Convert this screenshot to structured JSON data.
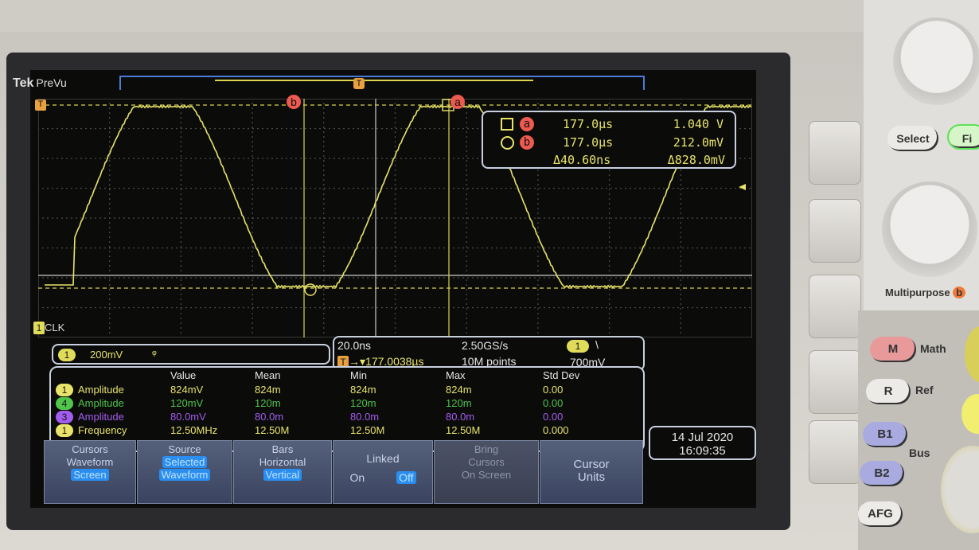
{
  "header": {
    "brand": "Tek",
    "mode": "PreVu"
  },
  "markers": {
    "trigger": "T",
    "cursor_a": "a",
    "cursor_b": "b",
    "channel_label": "CLK",
    "channel_num": "1"
  },
  "cursor_readout": {
    "a": {
      "shape": "square",
      "label": "a",
      "time": "177.0µs",
      "value": "1.040 V"
    },
    "b": {
      "shape": "circle",
      "label": "b",
      "time": "177.0µs",
      "value": "212.0mV"
    },
    "delta": {
      "time": "Δ40.60ns",
      "value": "Δ828.0mV"
    }
  },
  "channel": {
    "num": "1",
    "scale": "200mV",
    "coupling_icon": "bandwidth-icon"
  },
  "timebase": {
    "scale": "20.0ns",
    "trigger_pos": "177.0038µs",
    "sample_rate": "2.50GS/s",
    "record": "10M points",
    "trig_ch": "1",
    "trig_slope": "\\",
    "trig_level": "700mV"
  },
  "measurements": {
    "headers": [
      "Value",
      "Mean",
      "Min",
      "Max",
      "Std Dev"
    ],
    "rows": [
      {
        "ch": "1",
        "name": "Amplitude",
        "color": "#e8e46a",
        "cells": [
          "824mV",
          "824m",
          "824m",
          "824m",
          "0.00"
        ]
      },
      {
        "ch": "4",
        "name": "Amplitude",
        "color": "#4fc54a",
        "cells": [
          "120mV",
          "120m",
          "120m",
          "120m",
          "0.00"
        ]
      },
      {
        "ch": "3",
        "name": "Amplitude",
        "color": "#a35cf0",
        "cells": [
          "80.0mV",
          "80.0m",
          "80.0m",
          "80.0m",
          "0.00"
        ]
      },
      {
        "ch": "1",
        "name": "Frequency",
        "color": "#e8e46a",
        "cells": [
          "12.50MHz",
          "12.50M",
          "12.50M",
          "12.50M",
          "0.000"
        ]
      }
    ]
  },
  "datetime": {
    "date": "14 Jul  2020",
    "time": "16:09:35"
  },
  "softkeys": [
    {
      "title": "Cursors",
      "l1": "Waveform",
      "l2": "Screen"
    },
    {
      "title": "Source",
      "l1": "Selected",
      "l2": "Waveform"
    },
    {
      "title": "Bars",
      "l1": "Horizontal",
      "l2": "Vertical"
    },
    {
      "title": "Linked",
      "on": "On",
      "off": "Off"
    },
    {
      "title": "Bring",
      "l1": "Cursors",
      "l2": "On Screen"
    },
    {
      "title": "Cursor",
      "l1": "Units"
    }
  ],
  "panel": {
    "select": "Select",
    "fine": "Fi",
    "multipurpose": "Multipurpose",
    "mp_letter": "b",
    "math_btn": "M",
    "math": "Math",
    "ref_btn": "R",
    "ref": "Ref",
    "b1": "B1",
    "b2": "B2",
    "bus": "Bus",
    "afg": "AFG"
  },
  "colors": {
    "ch1": "#e8e46a",
    "ch4": "#4fc54a",
    "ch3": "#a35cf0",
    "cursor_badge": "#ec5a50",
    "softkey_highlight": "#2a8ef0"
  }
}
